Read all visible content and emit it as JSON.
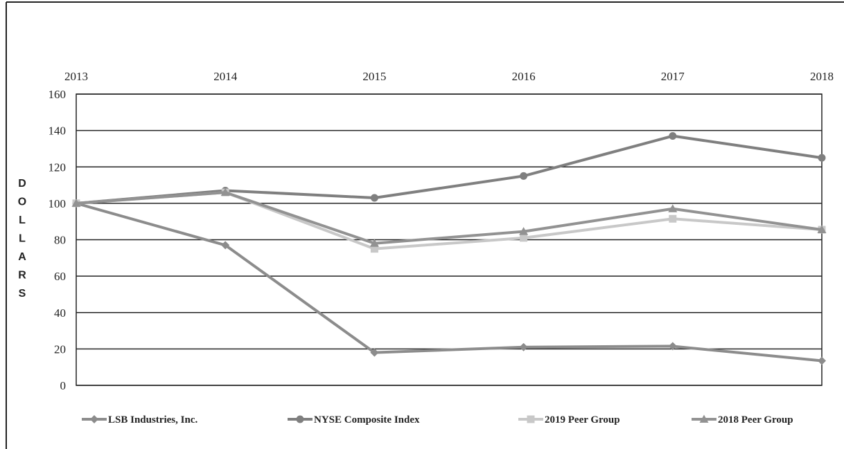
{
  "chart_data": {
    "type": "line",
    "categories": [
      "2013",
      "2014",
      "2015",
      "2016",
      "2017",
      "2018"
    ],
    "ylabel": "DOLLARS",
    "ylim": [
      0,
      160
    ],
    "yticks": [
      "0",
      "20",
      "40",
      "60",
      "80",
      "100",
      "120",
      "140",
      "160"
    ],
    "grid": true,
    "legend_position": "bottom",
    "series": [
      {
        "name": "LSB Industries, Inc.",
        "marker": "diamond",
        "color": "#8c8c8c",
        "values": [
          100,
          77,
          18,
          21,
          21.5,
          13.5
        ]
      },
      {
        "name": "NYSE Composite Index",
        "marker": "circle",
        "color": "#7f7f7f",
        "values": [
          100,
          107,
          103,
          115,
          137,
          125
        ]
      },
      {
        "name": "2019 Peer Group",
        "marker": "square",
        "color": "#c8c8c8",
        "values": [
          100,
          106,
          75,
          81,
          91.5,
          85.5
        ]
      },
      {
        "name": "2018 Peer Group",
        "marker": "triangle",
        "color": "#929292",
        "values": [
          100,
          106,
          78,
          84.5,
          97,
          85.5
        ]
      }
    ]
  }
}
